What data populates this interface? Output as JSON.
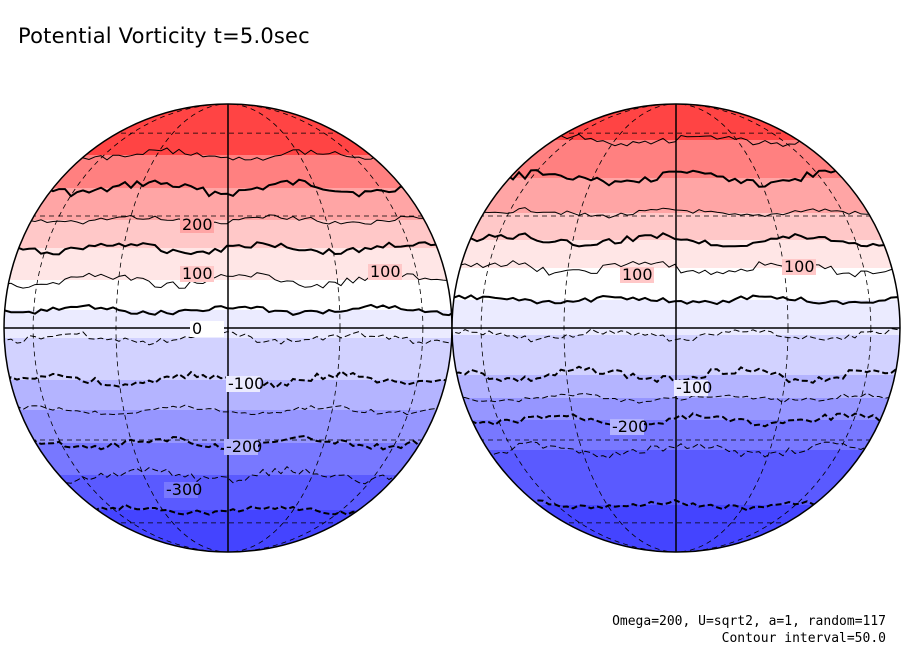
{
  "title": "Potential Vorticity t=5.0sec",
  "footer": {
    "params": "Omega=200, U=sqrt2, a=1, random=117",
    "contour_interval": "Contour interval=50.0"
  },
  "colors": {
    "bands_positive": [
      "#ff4444",
      "#ff8080",
      "#ffa5a5",
      "#ffc8c8",
      "#ffe6e6"
    ],
    "zero_band": "#ffffff",
    "bands_negative": [
      "#ebebff",
      "#d2d2ff",
      "#b4b4ff",
      "#9696ff",
      "#7878ff",
      "#5a5aff",
      "#4444ff"
    ]
  },
  "globes": [
    {
      "name": "left",
      "labels": [
        "200",
        "100",
        "100",
        "0",
        "100",
        "200",
        "300"
      ]
    },
    {
      "name": "right",
      "labels": [
        "100",
        "100",
        "100",
        "200"
      ]
    }
  ]
}
